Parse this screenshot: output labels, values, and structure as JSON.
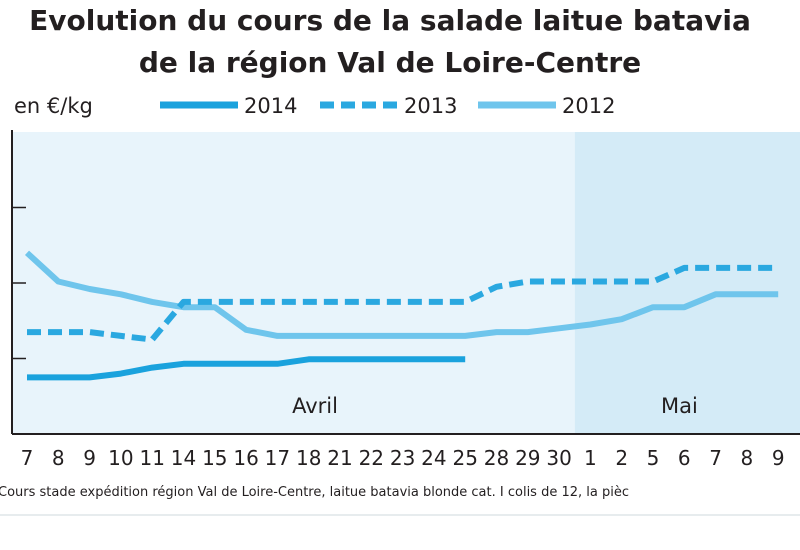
{
  "chart_data": {
    "type": "line",
    "title": "Evolution du cours de la salade laitue batavia",
    "subtitle": "de la région Val de Loire-Centre",
    "ylabel": "en €/kg",
    "xlabel": "",
    "categories": [
      "7",
      "8",
      "9",
      "10",
      "11",
      "14",
      "15",
      "16",
      "17",
      "18",
      "21",
      "22",
      "23",
      "24",
      "25",
      "28",
      "29",
      "30",
      "1",
      "2",
      "5",
      "6",
      "7",
      "8",
      "9"
    ],
    "periods": [
      {
        "label": "Avril",
        "start_index": 0,
        "end_index": 17,
        "color": "#e8f4fb"
      },
      {
        "label": "Mai",
        "start_index": 18,
        "end_index": 24,
        "color": "#d4ebf7"
      }
    ],
    "y_gridlines": [
      3,
      2,
      1
    ],
    "ylim": [
      0,
      4
    ],
    "legend_position": "top",
    "series": [
      {
        "name": "2014",
        "color": "#1aa2dd",
        "style": "solid-thick",
        "values": [
          0.75,
          0.75,
          0.75,
          0.8,
          0.88,
          0.93,
          0.93,
          0.93,
          0.93,
          0.99,
          0.99,
          0.99,
          0.99,
          0.99,
          0.99,
          null,
          null,
          null,
          null,
          null,
          null,
          null,
          null,
          null,
          null
        ]
      },
      {
        "name": "2013",
        "color": "#2aa8e0",
        "style": "dashed",
        "values": [
          1.35,
          1.35,
          1.35,
          1.3,
          1.25,
          1.75,
          1.75,
          1.75,
          1.75,
          1.75,
          1.75,
          1.75,
          1.75,
          1.75,
          1.75,
          1.95,
          2.02,
          2.02,
          2.02,
          2.02,
          2.02,
          2.2,
          2.2,
          2.2,
          2.2
        ]
      },
      {
        "name": "2012",
        "color": "#6fc5ec",
        "style": "solid",
        "values": [
          2.4,
          2.02,
          1.92,
          1.85,
          1.75,
          1.68,
          1.68,
          1.38,
          1.3,
          1.3,
          1.3,
          1.3,
          1.3,
          1.3,
          1.3,
          1.35,
          1.35,
          1.4,
          1.45,
          1.52,
          1.68,
          1.68,
          1.85,
          1.85,
          1.85
        ]
      }
    ],
    "footnote": "Cours stade expédition région Val de Loire-Centre, laitue batavia blonde cat. I colis de 12, la pièc"
  }
}
